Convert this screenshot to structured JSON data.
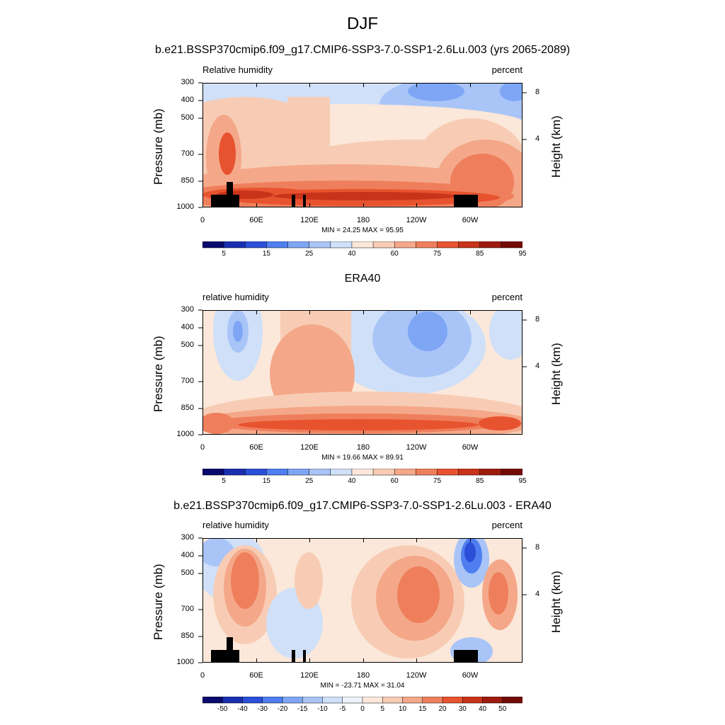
{
  "title": "DJF",
  "panels": [
    {
      "id": "model",
      "header": "b.e21.BSSP370cmip6.f09_g17.CMIP6-SSP3-7.0-SSP1-2.6Lu.003 (yrs 2065-2089)",
      "left_label": "Relative humidity",
      "right_label": "percent",
      "minmax": "MIN =  24.25  MAX =  95.95",
      "colorbar": "abs"
    },
    {
      "id": "obs",
      "header": "ERA40",
      "left_label": "relative humidity",
      "right_label": "percent",
      "minmax": "MIN =  19.66  MAX =  89.91",
      "colorbar": "abs"
    },
    {
      "id": "diff",
      "header": "b.e21.BSSP370cmip6.f09_g17.CMIP6-SSP3-7.0-SSP1-2.6Lu.003 - ERA40",
      "left_label": "relative humidity",
      "right_label": "percent",
      "minmax": "MIN = -23.71  MAX =  31.04",
      "colorbar": "diff"
    }
  ],
  "axes": {
    "ylabel": "Pressure (mb)",
    "y2label": "Height (km)",
    "yticks": [
      "300",
      "400",
      "500",
      "700",
      "850",
      "1000"
    ],
    "xticks": [
      "0",
      "60E",
      "120E",
      "180",
      "120W",
      "60W"
    ],
    "height_ticks": [
      "8",
      "4"
    ]
  },
  "colorbars": {
    "abs": {
      "labels": [
        "5",
        "15",
        "25",
        "40",
        "60",
        "75",
        "85",
        "95"
      ],
      "colors": [
        "#0a0a6e",
        "#1a2fb0",
        "#2b4fd8",
        "#4f7ef0",
        "#7ea6f5",
        "#a9c4f7",
        "#cfe0f8",
        "#fbe8da",
        "#f8ccb4",
        "#f4a889",
        "#ef7f5c",
        "#e8532f",
        "#c8331a",
        "#9e1b0f",
        "#730a05"
      ]
    },
    "diff": {
      "labels": [
        "-50",
        "-40",
        "-30",
        "-20",
        "-15",
        "-10",
        "-5",
        "0",
        "5",
        "10",
        "15",
        "20",
        "30",
        "40",
        "50"
      ],
      "colors": [
        "#0a0a6e",
        "#1a2fb0",
        "#2b4fd8",
        "#4f7ef0",
        "#7ea6f5",
        "#a9c4f7",
        "#cfe0f8",
        "#eef3fb",
        "#fbe8da",
        "#f8ccb4",
        "#f4a889",
        "#ef7f5c",
        "#e8532f",
        "#c8331a",
        "#9e1b0f",
        "#730a05"
      ]
    }
  },
  "chart_data": [
    {
      "type": "heatmap",
      "title": "b.e21.BSSP370cmip6.f09_g17.CMIP6-SSP3-7.0-SSP1-2.6Lu.003 (yrs 2065-2089)",
      "variable": "Relative humidity",
      "units": "percent",
      "min": 24.25,
      "max": 95.95,
      "xlabel": "",
      "ylabel": "Pressure (mb)",
      "ylim": [
        1000,
        300
      ],
      "levels": [
        5,
        10,
        15,
        20,
        25,
        30,
        40,
        50,
        60,
        70,
        75,
        80,
        85,
        90,
        95
      ]
    },
    {
      "type": "heatmap",
      "title": "ERA40",
      "variable": "relative humidity",
      "units": "percent",
      "min": 19.66,
      "max": 89.91,
      "xlabel": "",
      "ylabel": "Pressure (mb)",
      "ylim": [
        1000,
        300
      ],
      "levels": [
        5,
        10,
        15,
        20,
        25,
        30,
        40,
        50,
        60,
        70,
        75,
        80,
        85,
        90,
        95
      ]
    },
    {
      "type": "heatmap",
      "title": "b.e21.BSSP370cmip6.f09_g17.CMIP6-SSP3-7.0-SSP1-2.6Lu.003 - ERA40",
      "variable": "relative humidity",
      "units": "percent",
      "min": -23.71,
      "max": 31.04,
      "xlabel": "",
      "ylabel": "Pressure (mb)",
      "ylim": [
        1000,
        300
      ],
      "levels": [
        -50,
        -40,
        -30,
        -20,
        -15,
        -10,
        -5,
        0,
        5,
        10,
        15,
        20,
        30,
        40,
        50
      ]
    }
  ]
}
